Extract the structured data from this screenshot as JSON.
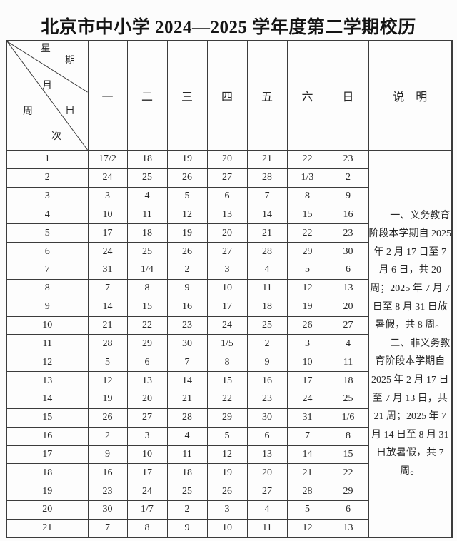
{
  "title": "北京市中小学 2024—2025 学年度第二学期校历",
  "colors": {
    "border": "#3c3c3c",
    "text": "#262626",
    "page_background": "#fcfcfc",
    "table_background": "#fdfdfd"
  },
  "calendar": {
    "corner": {
      "chars": [
        "星",
        "期",
        "月",
        "日",
        "周",
        "次"
      ]
    },
    "weekday_headers": [
      "一",
      "二",
      "三",
      "四",
      "五",
      "六",
      "日"
    ],
    "notes_header": "说　明",
    "rows": [
      {
        "week": "1",
        "days": [
          "17/2",
          "18",
          "19",
          "20",
          "21",
          "22",
          "23"
        ]
      },
      {
        "week": "2",
        "days": [
          "24",
          "25",
          "26",
          "27",
          "28",
          "1/3",
          "2"
        ]
      },
      {
        "week": "3",
        "days": [
          "3",
          "4",
          "5",
          "6",
          "7",
          "8",
          "9"
        ]
      },
      {
        "week": "4",
        "days": [
          "10",
          "11",
          "12",
          "13",
          "14",
          "15",
          "16"
        ]
      },
      {
        "week": "5",
        "days": [
          "17",
          "18",
          "19",
          "20",
          "21",
          "22",
          "23"
        ]
      },
      {
        "week": "6",
        "days": [
          "24",
          "25",
          "26",
          "27",
          "28",
          "29",
          "30"
        ]
      },
      {
        "week": "7",
        "days": [
          "31",
          "1/4",
          "2",
          "3",
          "4",
          "5",
          "6"
        ]
      },
      {
        "week": "8",
        "days": [
          "7",
          "8",
          "9",
          "10",
          "11",
          "12",
          "13"
        ]
      },
      {
        "week": "9",
        "days": [
          "14",
          "15",
          "16",
          "17",
          "18",
          "19",
          "20"
        ]
      },
      {
        "week": "10",
        "days": [
          "21",
          "22",
          "23",
          "24",
          "25",
          "26",
          "27"
        ]
      },
      {
        "week": "11",
        "days": [
          "28",
          "29",
          "30",
          "1/5",
          "2",
          "3",
          "4"
        ]
      },
      {
        "week": "12",
        "days": [
          "5",
          "6",
          "7",
          "8",
          "9",
          "10",
          "11"
        ]
      },
      {
        "week": "13",
        "days": [
          "12",
          "13",
          "14",
          "15",
          "16",
          "17",
          "18"
        ]
      },
      {
        "week": "14",
        "days": [
          "19",
          "20",
          "21",
          "22",
          "23",
          "24",
          "25"
        ]
      },
      {
        "week": "15",
        "days": [
          "26",
          "27",
          "28",
          "29",
          "30",
          "31",
          "1/6"
        ]
      },
      {
        "week": "16",
        "days": [
          "2",
          "3",
          "4",
          "5",
          "6",
          "7",
          "8"
        ]
      },
      {
        "week": "17",
        "days": [
          "9",
          "10",
          "11",
          "12",
          "13",
          "14",
          "15"
        ]
      },
      {
        "week": "18",
        "days": [
          "16",
          "17",
          "18",
          "19",
          "20",
          "21",
          "22"
        ]
      },
      {
        "week": "19",
        "days": [
          "23",
          "24",
          "25",
          "26",
          "27",
          "28",
          "29"
        ]
      },
      {
        "week": "20",
        "days": [
          "30",
          "1/7",
          "2",
          "3",
          "4",
          "5",
          "6"
        ]
      },
      {
        "week": "21",
        "days": [
          "7",
          "8",
          "9",
          "10",
          "11",
          "12",
          "13"
        ]
      }
    ]
  },
  "notes": {
    "paragraphs": [
      "一、义务教育阶段本学期自 2025 年 2 月 17 日至 7 月 6 日，共 20 周；2025 年 7 月 7 日至 8 月 31 日放暑假，共 8 周。",
      "二、非义务教育阶段本学期自 2025 年 2 月 17 日至 7 月 13 日，共 21 周；2025 年 7 月 14 日至 8 月 31 日放暑假，共 7 周。"
    ]
  }
}
